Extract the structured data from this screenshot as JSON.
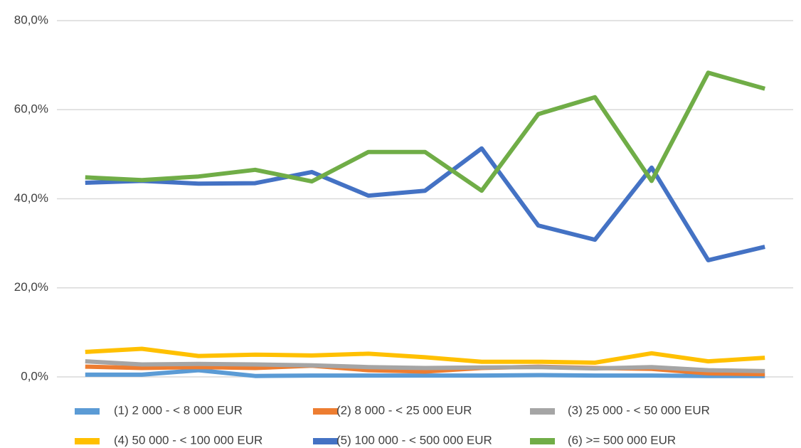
{
  "chart_data": {
    "type": "line",
    "categories": [
      null,
      null,
      null,
      null,
      null,
      null,
      null,
      null,
      null,
      null,
      null,
      null,
      null
    ],
    "series": [
      {
        "name": "(1) 2 000 - < 8 000 EUR",
        "color": "#5b9bd5",
        "values": [
          0.5,
          0.5,
          1.5,
          0.2,
          0.3,
          0.3,
          0.3,
          0.3,
          0.4,
          0.3,
          0.3,
          0.2,
          0.2
        ]
      },
      {
        "name": "(2) 8 000 - < 25 000 EUR",
        "color": "#ed7d31",
        "values": [
          2.3,
          2.0,
          2.2,
          2.0,
          2.5,
          1.5,
          1.2,
          2.0,
          2.3,
          2.0,
          1.8,
          0.8,
          0.6
        ]
      },
      {
        "name": "(3) 25 000 - < 50 000 EUR",
        "color": "#a5a5a5",
        "values": [
          3.5,
          2.8,
          2.9,
          2.8,
          2.6,
          2.2,
          2.0,
          2.1,
          2.2,
          1.9,
          2.2,
          1.5,
          1.3
        ]
      },
      {
        "name": "(4) 50 000 - < 100 000 EUR",
        "color": "#ffc000",
        "values": [
          5.6,
          6.3,
          4.7,
          5.0,
          4.8,
          5.2,
          4.4,
          3.4,
          3.4,
          3.2,
          5.3,
          3.5,
          4.3
        ]
      },
      {
        "name": "(5) 100 000 - < 500 000 EUR",
        "color": "#4472c4",
        "values": [
          43.6,
          44.0,
          43.4,
          43.5,
          46.0,
          40.7,
          41.8,
          51.3,
          34.0,
          30.8,
          47.0,
          26.2,
          29.2
        ]
      },
      {
        "name": "(6) >= 500 000 EUR",
        "color": "#70ad47",
        "values": [
          44.8,
          44.2,
          45.0,
          46.5,
          43.9,
          50.5,
          50.5,
          41.8,
          59.0,
          62.8,
          44.0,
          68.3,
          64.7
        ]
      }
    ],
    "ylim": [
      0,
      80
    ],
    "yticks": [
      {
        "value": 0,
        "label": "0,0%"
      },
      {
        "value": 20,
        "label": "20,0%"
      },
      {
        "value": 40,
        "label": "40,0%"
      },
      {
        "value": 60,
        "label": "60,0%"
      },
      {
        "value": 80,
        "label": "80,0%"
      }
    ],
    "grid": true,
    "legend": "bottom"
  }
}
